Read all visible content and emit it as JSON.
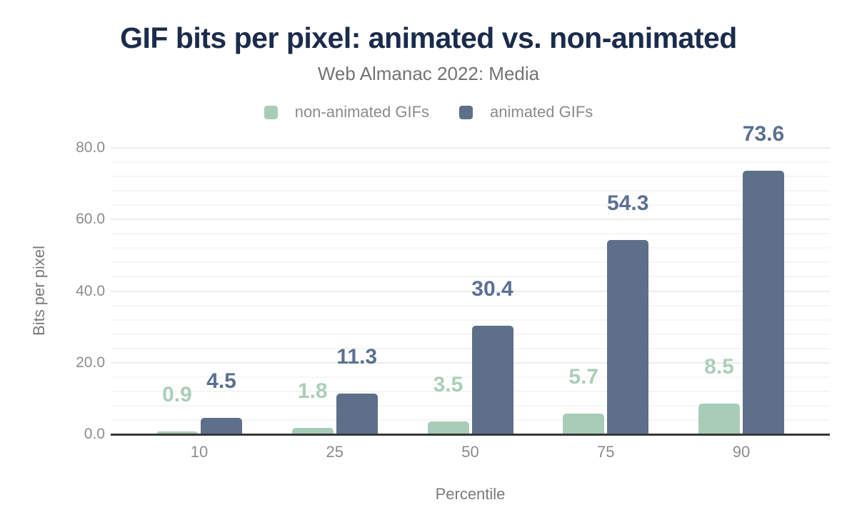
{
  "header": {
    "title": "GIF bits per pixel: animated vs. non-animated",
    "subtitle": "Web Almanac 2022: Media"
  },
  "legend": {
    "items": [
      {
        "label": "non-animated GIFs",
        "color": "#a9ccb8"
      },
      {
        "label": "animated GIFs",
        "color": "#5e7089"
      }
    ]
  },
  "chart_data": {
    "type": "bar",
    "title": "GIF bits per pixel: animated vs. non-animated",
    "subtitle": "Web Almanac 2022: Media",
    "categories": [
      "10",
      "25",
      "50",
      "75",
      "90"
    ],
    "series": [
      {
        "name": "non-animated GIFs",
        "color": "#a9ccb8",
        "label_color": "#abceba",
        "values": [
          0.9,
          1.8,
          3.5,
          5.7,
          8.5
        ]
      },
      {
        "name": "animated GIFs",
        "color": "#5e7089",
        "label_color": "#5b7093",
        "values": [
          4.5,
          11.3,
          30.4,
          54.3,
          73.6
        ]
      }
    ],
    "xlabel": "Percentile",
    "ylabel": "Bits per pixel",
    "ylim": [
      0,
      80
    ],
    "y_tick_values": [
      0,
      20,
      40,
      60,
      80
    ],
    "y_tick_labels": [
      "0.0",
      "20.0",
      "40.0",
      "60.0",
      "80.0"
    ],
    "grid": {
      "minor_step": 4,
      "major_step": 20,
      "gridlines_on": true
    },
    "legend_position": "top",
    "value_label_decimals": 1
  },
  "colors": {
    "title": "#1b2b4b",
    "subtitle": "#737373",
    "tick_text": "#8c8c8c",
    "axis_line": "#373737",
    "gridline_major": "#ececec",
    "gridline_minor": "#f6f6f6",
    "background": "#ffffff"
  }
}
